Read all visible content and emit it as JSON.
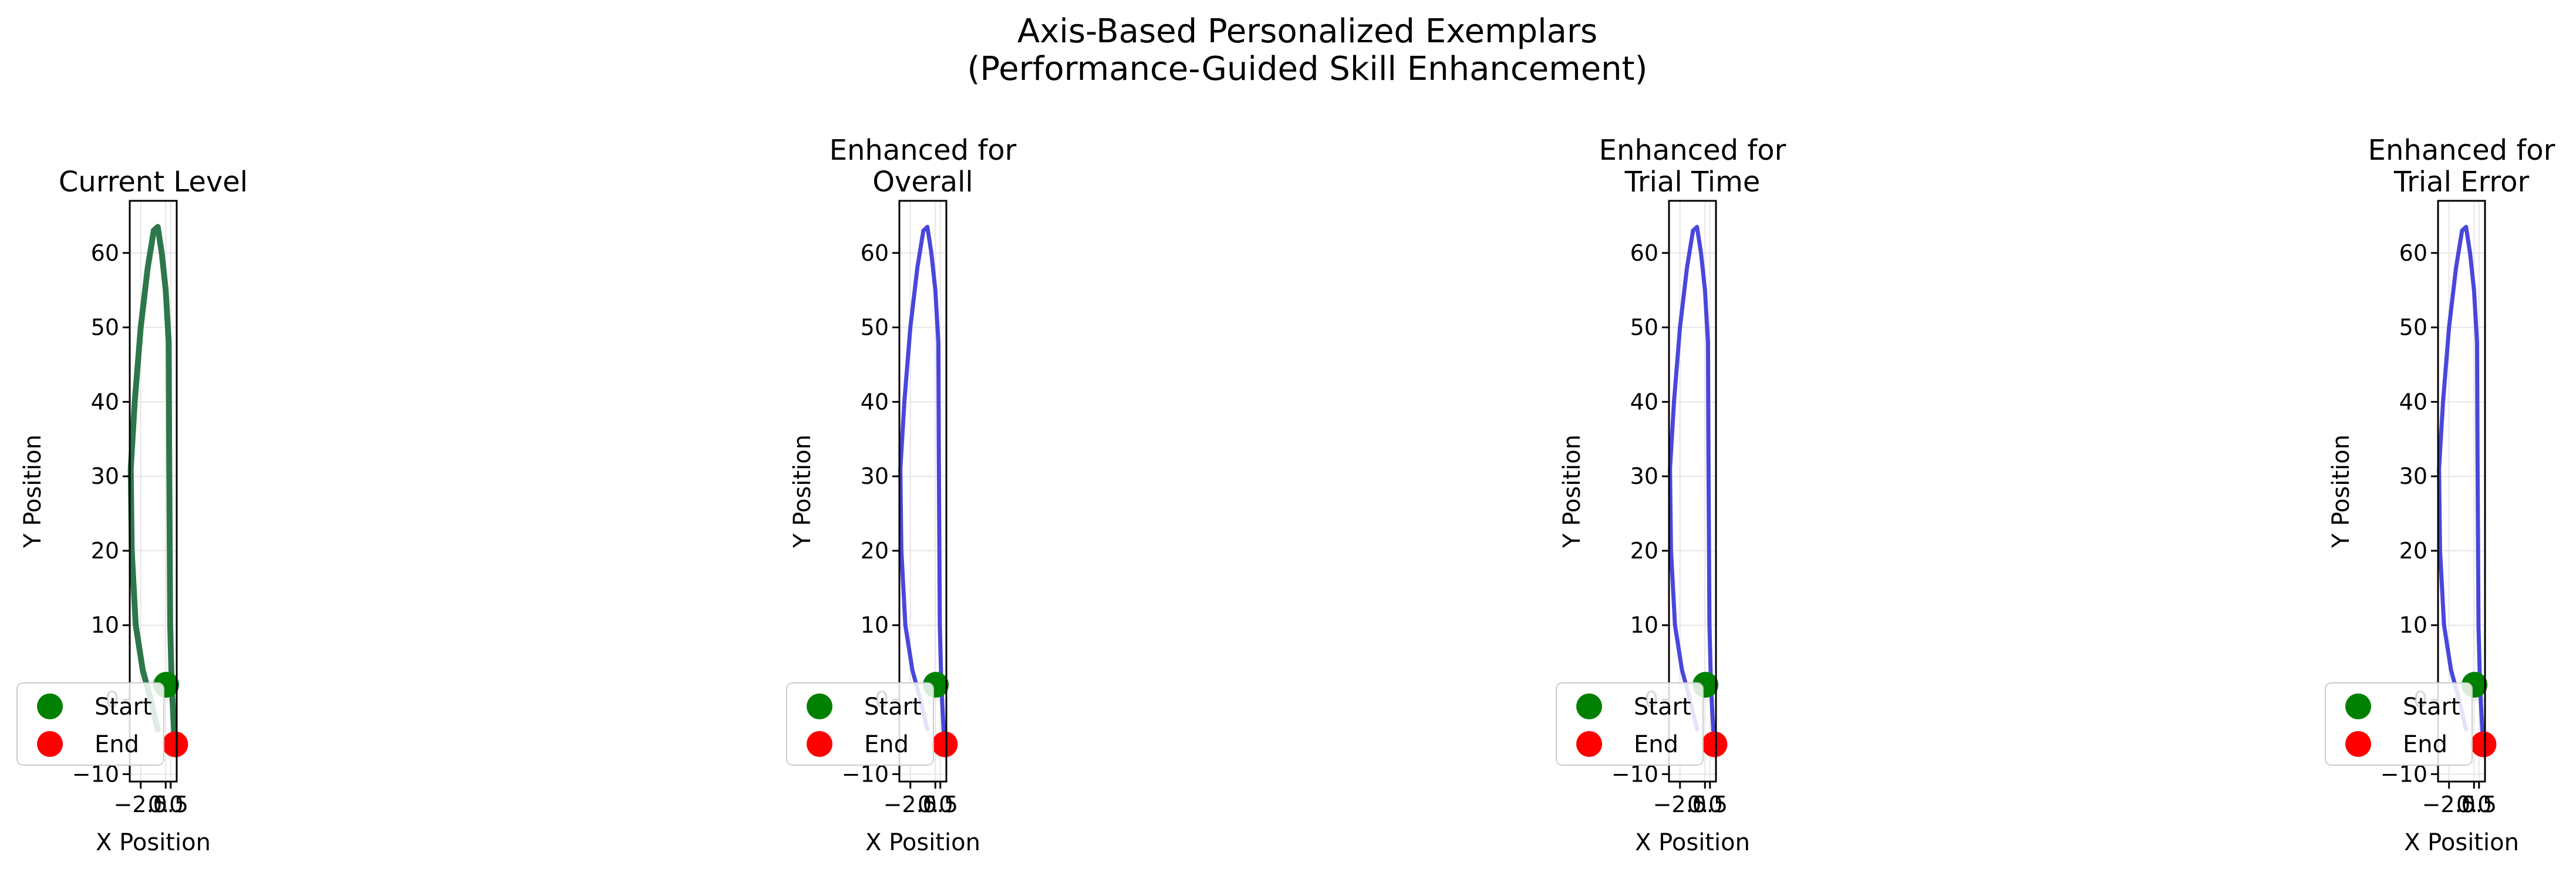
{
  "figure": {
    "suptitle_line1": "Axis-Based Personalized Exemplars",
    "suptitle_line2": "(Performance-Guided Skill Enhancement)"
  },
  "chart_data": [
    {
      "type": "line",
      "title": "Current Level",
      "title_lines": [
        "Current Level"
      ],
      "xlabel": "X Position",
      "ylabel": "Y Position",
      "xlim": [
        -3.6,
        1.1
      ],
      "ylim": [
        -11,
        67
      ],
      "xticks": [
        -2.5,
        0.0,
        0.5
      ],
      "xtick_labels": [
        "−2.5",
        "0.0",
        "0.5"
      ],
      "yticks": [
        -10,
        0,
        10,
        20,
        30,
        40,
        50,
        60
      ],
      "ytick_labels": [
        "−10",
        "0",
        "10",
        "20",
        "30",
        "40",
        "50",
        "60"
      ],
      "grid": true,
      "legend_position": "lower-left",
      "series": [
        {
          "color": "#1a6b3c",
          "x": [
            -0.8,
            -1.5,
            -2.3,
            -3.0,
            -3.4,
            -3.5,
            -3.1,
            -2.5,
            -1.8,
            -1.2,
            -0.8,
            -0.4,
            0.0,
            0.3,
            0.35,
            0.45,
            0.6,
            0.9
          ],
          "y": [
            -4,
            0,
            4,
            10,
            20,
            31,
            40,
            50,
            58,
            63,
            63.5,
            60,
            55,
            48,
            33,
            10,
            2,
            -6
          ]
        }
      ],
      "start": {
        "label": "Start",
        "color": "#008000",
        "x": 0.05,
        "y": 2
      },
      "end": {
        "label": "End",
        "color": "#ff0000",
        "x": 0.95,
        "y": -6
      }
    },
    {
      "type": "line",
      "title": "Enhanced for Overall",
      "title_lines": [
        "Enhanced for",
        "Overall"
      ],
      "xlabel": "X Position",
      "ylabel": "Y Position",
      "xlim": [
        -3.6,
        1.1
      ],
      "ylim": [
        -11,
        67
      ],
      "xticks": [
        -2.5,
        0.0,
        0.5
      ],
      "xtick_labels": [
        "−2.5",
        "0.0",
        "0.5"
      ],
      "yticks": [
        -10,
        0,
        10,
        20,
        30,
        40,
        50,
        60
      ],
      "ytick_labels": [
        "−10",
        "0",
        "10",
        "20",
        "30",
        "40",
        "50",
        "60"
      ],
      "grid": true,
      "legend_position": "lower-left",
      "series": [
        {
          "color": "#3a37d8",
          "x": [
            -0.8,
            -1.5,
            -2.3,
            -3.0,
            -3.4,
            -3.5,
            -3.1,
            -2.5,
            -1.8,
            -1.2,
            -0.8,
            -0.4,
            0.0,
            0.3,
            0.35,
            0.45,
            0.6,
            0.9
          ],
          "y": [
            -4,
            0,
            4,
            10,
            20,
            31,
            40,
            50,
            58,
            63,
            63.5,
            60,
            55,
            48,
            33,
            10,
            2,
            -6
          ]
        }
      ],
      "start": {
        "label": "Start",
        "color": "#008000",
        "x": 0.05,
        "y": 2
      },
      "end": {
        "label": "End",
        "color": "#ff0000",
        "x": 0.95,
        "y": -6
      }
    },
    {
      "type": "line",
      "title": "Enhanced for Trial Time",
      "title_lines": [
        "Enhanced for",
        "Trial Time"
      ],
      "xlabel": "X Position",
      "ylabel": "Y Position",
      "xlim": [
        -3.6,
        1.1
      ],
      "ylim": [
        -11,
        67
      ],
      "xticks": [
        -2.5,
        0.0,
        0.5
      ],
      "xtick_labels": [
        "−2.5",
        "0.0",
        "0.5"
      ],
      "yticks": [
        -10,
        0,
        10,
        20,
        30,
        40,
        50,
        60
      ],
      "ytick_labels": [
        "−10",
        "0",
        "10",
        "20",
        "30",
        "40",
        "50",
        "60"
      ],
      "grid": true,
      "legend_position": "lower-left",
      "series": [
        {
          "color": "#3a37d8",
          "x": [
            -0.8,
            -1.5,
            -2.3,
            -3.0,
            -3.4,
            -3.5,
            -3.1,
            -2.5,
            -1.8,
            -1.2,
            -0.8,
            -0.4,
            0.0,
            0.3,
            0.35,
            0.45,
            0.6,
            0.9
          ],
          "y": [
            -4,
            0,
            4,
            10,
            20,
            31,
            40,
            50,
            58,
            63,
            63.5,
            60,
            55,
            48,
            33,
            10,
            2,
            -6
          ]
        }
      ],
      "start": {
        "label": "Start",
        "color": "#008000",
        "x": 0.05,
        "y": 2
      },
      "end": {
        "label": "End",
        "color": "#ff0000",
        "x": 0.95,
        "y": -6
      }
    },
    {
      "type": "line",
      "title": "Enhanced for Trial Error",
      "title_lines": [
        "Enhanced for",
        "Trial Error"
      ],
      "xlabel": "X Position",
      "ylabel": "Y Position",
      "xlim": [
        -3.6,
        1.1
      ],
      "ylim": [
        -11,
        67
      ],
      "xticks": [
        -2.5,
        0.0,
        0.5
      ],
      "xtick_labels": [
        "−2.5",
        "0.0",
        "0.5"
      ],
      "yticks": [
        -10,
        0,
        10,
        20,
        30,
        40,
        50,
        60
      ],
      "ytick_labels": [
        "−10",
        "0",
        "10",
        "20",
        "30",
        "40",
        "50",
        "60"
      ],
      "grid": true,
      "legend_position": "lower-left",
      "series": [
        {
          "color": "#3a37d8",
          "x": [
            -0.8,
            -1.5,
            -2.3,
            -3.0,
            -3.4,
            -3.5,
            -3.1,
            -2.5,
            -1.8,
            -1.2,
            -0.8,
            -0.4,
            0.0,
            0.3,
            0.35,
            0.45,
            0.6,
            0.9
          ],
          "y": [
            -4,
            0,
            4,
            10,
            20,
            31,
            40,
            50,
            58,
            63,
            63.5,
            60,
            55,
            48,
            33,
            10,
            2,
            -6
          ]
        }
      ],
      "start": {
        "label": "Start",
        "color": "#008000",
        "x": 0.05,
        "y": 2
      },
      "end": {
        "label": "End",
        "color": "#ff0000",
        "x": 0.95,
        "y": -6
      }
    }
  ]
}
